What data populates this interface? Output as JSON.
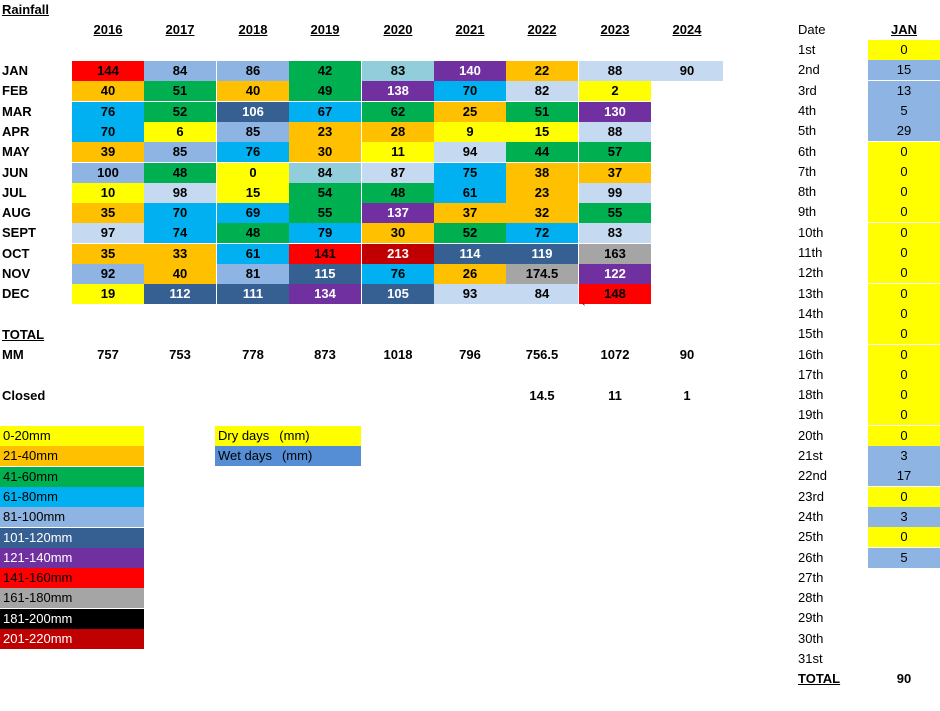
{
  "title": "Rainfall",
  "years": [
    "2016",
    "2017",
    "2018",
    "2019",
    "2020",
    "2021",
    "2022",
    "2023",
    "2024"
  ],
  "colors": {
    "yellow": "#ffff00",
    "orange": "#ffc000",
    "green": "#00b050",
    "blue": "#00b0f0",
    "lightblue": "#8db4e2",
    "navy": "#366092",
    "purple": "#7030a0",
    "red": "#ff0000",
    "grey": "#a5a5a5",
    "black": "#000000",
    "darkred": "#c00000",
    "pale": "#c5d9f1",
    "teal": "#92cddc",
    "white": "#ffffff",
    "drydays": "#ffff00",
    "wetdays": "#558ed5"
  },
  "months": [
    {
      "name": "JAN",
      "cells": [
        [
          "144",
          "red"
        ],
        [
          "84",
          "lightblue"
        ],
        [
          "86",
          "lightblue"
        ],
        [
          "42",
          "green"
        ],
        [
          "83",
          "teal"
        ],
        [
          "140",
          "purple"
        ],
        [
          "22",
          "orange"
        ],
        [
          "88",
          "pale"
        ],
        [
          "90",
          "pale"
        ]
      ]
    },
    {
      "name": "FEB",
      "cells": [
        [
          "40",
          "orange"
        ],
        [
          "51",
          "green"
        ],
        [
          "40",
          "orange"
        ],
        [
          "49",
          "green"
        ],
        [
          "138",
          "purple"
        ],
        [
          "70",
          "blue"
        ],
        [
          "82",
          "pale"
        ],
        [
          "2",
          "yellow"
        ]
      ]
    },
    {
      "name": "MAR",
      "cells": [
        [
          "76",
          "blue"
        ],
        [
          "52",
          "green"
        ],
        [
          "106",
          "navy"
        ],
        [
          "67",
          "blue"
        ],
        [
          "62",
          "green"
        ],
        [
          "25",
          "orange"
        ],
        [
          "51",
          "green"
        ],
        [
          "130",
          "purple"
        ]
      ]
    },
    {
      "name": "APR",
      "cells": [
        [
          "70",
          "blue"
        ],
        [
          "6",
          "yellow"
        ],
        [
          "85",
          "lightblue"
        ],
        [
          "23",
          "orange"
        ],
        [
          "28",
          "orange"
        ],
        [
          "9",
          "yellow"
        ],
        [
          "15",
          "yellow"
        ],
        [
          "88",
          "pale"
        ]
      ]
    },
    {
      "name": "MAY",
      "cells": [
        [
          "39",
          "orange"
        ],
        [
          "85",
          "lightblue"
        ],
        [
          "76",
          "blue"
        ],
        [
          "30",
          "orange"
        ],
        [
          "11",
          "yellow"
        ],
        [
          "94",
          "pale"
        ],
        [
          "44",
          "green"
        ],
        [
          "57",
          "green"
        ]
      ]
    },
    {
      "name": "JUN",
      "cells": [
        [
          "100",
          "lightblue"
        ],
        [
          "48",
          "green"
        ],
        [
          "0",
          "yellow"
        ],
        [
          "84",
          "teal"
        ],
        [
          "87",
          "pale"
        ],
        [
          "75",
          "blue"
        ],
        [
          "38",
          "orange"
        ],
        [
          "37",
          "orange"
        ]
      ]
    },
    {
      "name": "JUL",
      "cells": [
        [
          "10",
          "yellow"
        ],
        [
          "98",
          "pale"
        ],
        [
          "15",
          "yellow"
        ],
        [
          "54",
          "green"
        ],
        [
          "48",
          "green"
        ],
        [
          "61",
          "blue"
        ],
        [
          "23",
          "orange"
        ],
        [
          "99",
          "pale"
        ]
      ]
    },
    {
      "name": "AUG",
      "cells": [
        [
          "35",
          "orange"
        ],
        [
          "70",
          "blue"
        ],
        [
          "69",
          "blue"
        ],
        [
          "55",
          "green"
        ],
        [
          "137",
          "purple"
        ],
        [
          "37",
          "orange"
        ],
        [
          "32",
          "orange"
        ],
        [
          "55",
          "green"
        ]
      ]
    },
    {
      "name": "SEPT",
      "cells": [
        [
          "97",
          "pale"
        ],
        [
          "74",
          "blue"
        ],
        [
          "48",
          "green"
        ],
        [
          "79",
          "blue"
        ],
        [
          "30",
          "orange"
        ],
        [
          "52",
          "green"
        ],
        [
          "72",
          "blue"
        ],
        [
          "83",
          "pale"
        ]
      ]
    },
    {
      "name": "OCT",
      "cells": [
        [
          "35",
          "orange"
        ],
        [
          "33",
          "orange"
        ],
        [
          "61",
          "blue"
        ],
        [
          "141",
          "red"
        ],
        [
          "213",
          "darkred"
        ],
        [
          "114",
          "navy"
        ],
        [
          "119",
          "navy"
        ],
        [
          "163",
          "grey"
        ]
      ]
    },
    {
      "name": "NOV",
      "cells": [
        [
          "92",
          "lightblue"
        ],
        [
          "40",
          "orange"
        ],
        [
          "81",
          "lightblue"
        ],
        [
          "115",
          "navy"
        ],
        [
          "76",
          "blue"
        ],
        [
          "26",
          "orange"
        ],
        [
          "174.5",
          "grey"
        ],
        [
          "122",
          "purple"
        ]
      ]
    },
    {
      "name": "DEC",
      "cells": [
        [
          "19",
          "yellow"
        ],
        [
          "112",
          "navy"
        ],
        [
          "111",
          "navy"
        ],
        [
          "134",
          "purple"
        ],
        [
          "105",
          "navy"
        ],
        [
          "93",
          "pale"
        ],
        [
          "84",
          "pale"
        ],
        [
          "148",
          "red"
        ]
      ]
    }
  ],
  "backtick": "`",
  "total_label": "TOTAL",
  "mm_label": "MM",
  "totals": [
    "757",
    "753",
    "778",
    "873",
    "1018",
    "796",
    "756.5",
    "1072",
    "90"
  ],
  "closed_label": "Closed",
  "closed": [
    "",
    "",
    "",
    "",
    "",
    "",
    "14.5",
    "11",
    "1"
  ],
  "legend": [
    {
      "label": "0-20mm",
      "color": "yellow"
    },
    {
      "label": "21-40mm",
      "color": "orange"
    },
    {
      "label": "41-60mm",
      "color": "green"
    },
    {
      "label": "61-80mm",
      "color": "blue"
    },
    {
      "label": "81-100mm",
      "color": "lightblue"
    },
    {
      "label": "101-120mm",
      "color": "navy"
    },
    {
      "label": "121-140mm",
      "color": "purple"
    },
    {
      "label": "141-160mm",
      "color": "red"
    },
    {
      "label": "161-180mm",
      "color": "grey"
    },
    {
      "label": "181-200mm",
      "color": "black"
    },
    {
      "label": "201-220mm",
      "color": "darkred"
    }
  ],
  "daytypes": [
    {
      "label": "Dry days",
      "unit": "(mm)",
      "color": "drydays"
    },
    {
      "label": "Wet days",
      "unit": "(mm)",
      "color": "wetdays"
    }
  ],
  "daily": {
    "date_header": "Date",
    "month_header": "JAN",
    "days": [
      {
        "d": "1st",
        "v": "0",
        "c": "yellow"
      },
      {
        "d": "2nd",
        "v": "15",
        "c": "lightblue"
      },
      {
        "d": "3rd",
        "v": "13",
        "c": "lightblue"
      },
      {
        "d": "4th",
        "v": "5",
        "c": "lightblue"
      },
      {
        "d": "5th",
        "v": "29",
        "c": "lightblue"
      },
      {
        "d": "6th",
        "v": "0",
        "c": "yellow"
      },
      {
        "d": "7th",
        "v": "0",
        "c": "yellow"
      },
      {
        "d": "8th",
        "v": "0",
        "c": "yellow"
      },
      {
        "d": "9th",
        "v": "0",
        "c": "yellow"
      },
      {
        "d": "10th",
        "v": "0",
        "c": "yellow"
      },
      {
        "d": "11th",
        "v": "0",
        "c": "yellow"
      },
      {
        "d": "12th",
        "v": "0",
        "c": "yellow"
      },
      {
        "d": "13th",
        "v": "0",
        "c": "yellow"
      },
      {
        "d": "14th",
        "v": "0",
        "c": "yellow"
      },
      {
        "d": "15th",
        "v": "0",
        "c": "yellow"
      },
      {
        "d": "16th",
        "v": "0",
        "c": "yellow"
      },
      {
        "d": "17th",
        "v": "0",
        "c": "yellow"
      },
      {
        "d": "18th",
        "v": "0",
        "c": "yellow"
      },
      {
        "d": "19th",
        "v": "0",
        "c": "yellow"
      },
      {
        "d": "20th",
        "v": "0",
        "c": "yellow"
      },
      {
        "d": "21st",
        "v": "3",
        "c": "lightblue"
      },
      {
        "d": "22nd",
        "v": "17",
        "c": "lightblue"
      },
      {
        "d": "23rd",
        "v": "0",
        "c": "yellow"
      },
      {
        "d": "24th",
        "v": "3",
        "c": "lightblue"
      },
      {
        "d": "25th",
        "v": "0",
        "c": "yellow"
      },
      {
        "d": "26th",
        "v": "5",
        "c": "lightblue"
      },
      {
        "d": "27th",
        "v": "",
        "c": "white"
      },
      {
        "d": "28th",
        "v": "",
        "c": "white"
      },
      {
        "d": "29th",
        "v": "",
        "c": "white"
      },
      {
        "d": "30th",
        "v": "",
        "c": "white"
      },
      {
        "d": "31st",
        "v": "",
        "c": "white"
      }
    ],
    "total_label": "TOTAL",
    "total": "90"
  }
}
